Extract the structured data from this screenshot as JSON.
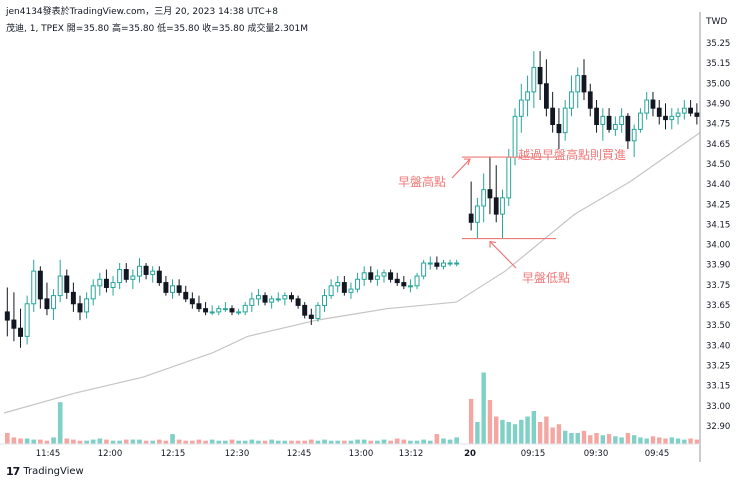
{
  "header": {
    "title": "jen4134發表於TradingView.com，三月 20, 2023 14:38 UTC+8",
    "ohlc_line": "茂迪, 1, TPEX  開=35.80  高=35.80  低=35.80  收=35.80  成交量2.301M"
  },
  "currency": "TWD",
  "brand": {
    "logo": "17",
    "name": "TradingView"
  },
  "colors": {
    "up": "#26a69a",
    "down": "#131722",
    "annotation": "#f07878",
    "ma": "#c8c4c4",
    "vol_up": "#7fd0c6",
    "vol_down": "#f4a6a2"
  },
  "chart_data": {
    "type": "candlestick",
    "y_axis": {
      "ticks": [
        "35.25",
        "35.15",
        "35.00",
        "34.90",
        "34.75",
        "34.65",
        "34.50",
        "34.40",
        "34.25",
        "34.15",
        "34.00",
        "33.90",
        "33.75",
        "33.65",
        "33.50",
        "33.40",
        "33.25",
        "33.15",
        "33.00",
        "32.90"
      ]
    },
    "x_axis": {
      "ticks": [
        {
          "label": "11:45"
        },
        {
          "label": "12:00"
        },
        {
          "label": "12:15"
        },
        {
          "label": "12:30"
        },
        {
          "label": "12:45"
        },
        {
          "label": "13:00"
        },
        {
          "label": "13:12"
        },
        {
          "label": "20",
          "bold": true
        },
        {
          "label": "09:15"
        },
        {
          "label": "09:30"
        },
        {
          "label": "09:45"
        }
      ]
    },
    "annotations": [
      {
        "text": "越過早盤高點則買進"
      },
      {
        "text": "早盤高點"
      },
      {
        "text": "早盤低點"
      }
    ],
    "reference_levels": {
      "early_high": 34.55,
      "early_low": 34.05
    },
    "day1_candles": [
      [
        33.6,
        33.75,
        33.45,
        33.55
      ],
      [
        33.55,
        33.72,
        33.42,
        33.5
      ],
      [
        33.5,
        33.62,
        33.38,
        33.45
      ],
      [
        33.45,
        33.7,
        33.4,
        33.65
      ],
      [
        33.65,
        33.92,
        33.6,
        33.85
      ],
      [
        33.85,
        33.88,
        33.62,
        33.68
      ],
      [
        33.68,
        33.78,
        33.58,
        33.62
      ],
      [
        33.62,
        33.74,
        33.55,
        33.7
      ],
      [
        33.7,
        33.92,
        33.66,
        33.82
      ],
      [
        33.82,
        33.86,
        33.68,
        33.72
      ],
      [
        33.72,
        33.78,
        33.6,
        33.65
      ],
      [
        33.65,
        33.7,
        33.55,
        33.6
      ],
      [
        33.6,
        33.72,
        33.56,
        33.68
      ],
      [
        33.68,
        33.8,
        33.64,
        33.76
      ],
      [
        33.76,
        33.84,
        33.7,
        33.8
      ],
      [
        33.8,
        33.86,
        33.72,
        33.75
      ],
      [
        33.75,
        33.82,
        33.7,
        33.78
      ],
      [
        33.78,
        33.9,
        33.74,
        33.86
      ],
      [
        33.86,
        33.9,
        33.78,
        33.8
      ],
      [
        33.8,
        33.86,
        33.74,
        33.82
      ],
      [
        33.82,
        33.93,
        33.78,
        33.88
      ],
      [
        33.88,
        33.9,
        33.8,
        33.83
      ],
      [
        33.83,
        33.88,
        33.78,
        33.85
      ],
      [
        33.85,
        33.88,
        33.76,
        33.78
      ],
      [
        33.78,
        33.82,
        33.7,
        33.72
      ],
      [
        33.72,
        33.8,
        33.68,
        33.76
      ],
      [
        33.76,
        33.8,
        33.7,
        33.72
      ],
      [
        33.72,
        33.76,
        33.66,
        33.68
      ],
      [
        33.68,
        33.72,
        33.62,
        33.65
      ],
      [
        33.65,
        33.7,
        33.6,
        33.62
      ],
      [
        33.62,
        33.66,
        33.58,
        33.6
      ],
      [
        33.6,
        33.64,
        33.58,
        33.6
      ],
      [
        33.6,
        33.64,
        33.58,
        33.62
      ],
      [
        33.62,
        33.66,
        33.6,
        33.62
      ],
      [
        33.62,
        33.64,
        33.58,
        33.6
      ],
      [
        33.6,
        33.62,
        33.58,
        33.6
      ],
      [
        33.6,
        33.66,
        33.58,
        33.64
      ],
      [
        33.64,
        33.72,
        33.6,
        33.68
      ],
      [
        33.68,
        33.74,
        33.64,
        33.7
      ],
      [
        33.7,
        33.72,
        33.64,
        33.66
      ],
      [
        33.66,
        33.7,
        33.62,
        33.68
      ],
      [
        33.68,
        33.72,
        33.66,
        33.68
      ],
      [
        33.68,
        33.72,
        33.64,
        33.7
      ],
      [
        33.7,
        33.72,
        33.66,
        33.68
      ],
      [
        33.68,
        33.7,
        33.62,
        33.64
      ],
      [
        33.64,
        33.66,
        33.56,
        33.58
      ],
      [
        33.58,
        33.62,
        33.52,
        33.56
      ],
      [
        33.56,
        33.66,
        33.54,
        33.64
      ],
      [
        33.64,
        33.74,
        33.6,
        33.7
      ],
      [
        33.7,
        33.8,
        33.68,
        33.76
      ],
      [
        33.76,
        33.82,
        33.72,
        33.78
      ],
      [
        33.78,
        33.82,
        33.7,
        33.72
      ],
      [
        33.72,
        33.78,
        33.68,
        33.74
      ],
      [
        33.74,
        33.84,
        33.72,
        33.8
      ],
      [
        33.8,
        33.88,
        33.76,
        33.84
      ],
      [
        33.84,
        33.88,
        33.78,
        33.8
      ],
      [
        33.8,
        33.86,
        33.76,
        33.82
      ],
      [
        33.82,
        33.86,
        33.78,
        33.84
      ],
      [
        33.84,
        33.86,
        33.78,
        33.8
      ],
      [
        33.8,
        33.84,
        33.76,
        33.78
      ],
      [
        33.78,
        33.82,
        33.74,
        33.76
      ],
      [
        33.76,
        33.8,
        33.72,
        33.76
      ],
      [
        33.76,
        33.84,
        33.74,
        33.82
      ],
      [
        33.82,
        33.92,
        33.8,
        33.9
      ],
      [
        33.9,
        33.94,
        33.86,
        33.9
      ],
      [
        33.9,
        33.94,
        33.86,
        33.88
      ],
      [
        33.88,
        33.92,
        33.86,
        33.9
      ],
      [
        33.9,
        33.92,
        33.88,
        33.9
      ],
      [
        33.9,
        33.92,
        33.88,
        33.9
      ]
    ],
    "day2_candles": [
      [
        34.2,
        34.4,
        34.1,
        34.15
      ],
      [
        34.15,
        34.3,
        34.05,
        34.25
      ],
      [
        34.25,
        34.45,
        34.15,
        34.35
      ],
      [
        34.35,
        34.55,
        34.2,
        34.3
      ],
      [
        34.3,
        34.5,
        34.15,
        34.2
      ],
      [
        34.2,
        34.35,
        34.05,
        34.3
      ],
      [
        34.3,
        34.6,
        34.25,
        34.55
      ],
      [
        34.55,
        34.85,
        34.5,
        34.8
      ],
      [
        34.8,
        35.0,
        34.7,
        34.9
      ],
      [
        34.9,
        35.05,
        34.8,
        34.95
      ],
      [
        34.95,
        35.2,
        34.85,
        35.1
      ],
      [
        35.1,
        35.2,
        34.9,
        35.0
      ],
      [
        35.0,
        35.15,
        34.8,
        34.85
      ],
      [
        34.85,
        34.95,
        34.7,
        34.75
      ],
      [
        34.75,
        34.85,
        34.6,
        34.7
      ],
      [
        34.7,
        34.9,
        34.65,
        34.85
      ],
      [
        34.85,
        35.05,
        34.8,
        34.95
      ],
      [
        34.95,
        35.1,
        34.85,
        35.05
      ],
      [
        35.05,
        35.15,
        34.9,
        34.95
      ],
      [
        34.95,
        35.0,
        34.8,
        34.85
      ],
      [
        34.85,
        34.9,
        34.7,
        34.75
      ],
      [
        34.75,
        34.85,
        34.65,
        34.8
      ],
      [
        34.8,
        34.85,
        34.7,
        34.72
      ],
      [
        34.72,
        34.8,
        34.68,
        34.75
      ],
      [
        34.75,
        34.85,
        34.7,
        34.8
      ],
      [
        34.8,
        34.82,
        34.6,
        34.65
      ],
      [
        34.65,
        34.75,
        34.55,
        34.72
      ],
      [
        34.72,
        34.85,
        34.7,
        34.82
      ],
      [
        34.82,
        34.95,
        34.78,
        34.9
      ],
      [
        34.9,
        34.95,
        34.8,
        34.85
      ],
      [
        34.85,
        34.9,
        34.75,
        34.8
      ],
      [
        34.8,
        34.88,
        34.72,
        34.78
      ],
      [
        34.78,
        34.85,
        34.72,
        34.8
      ],
      [
        34.8,
        34.85,
        34.75,
        34.82
      ],
      [
        34.82,
        34.9,
        34.78,
        34.85
      ],
      [
        34.85,
        34.9,
        34.8,
        34.82
      ],
      [
        34.82,
        34.88,
        34.75,
        34.8
      ]
    ],
    "moving_average": [
      [
        0,
        32.98
      ],
      [
        0.1,
        33.1
      ],
      [
        0.2,
        33.2
      ],
      [
        0.3,
        33.35
      ],
      [
        0.35,
        33.45
      ],
      [
        0.45,
        33.55
      ],
      [
        0.55,
        33.62
      ],
      [
        0.65,
        33.66
      ],
      [
        0.72,
        33.85
      ],
      [
        0.82,
        34.2
      ],
      [
        0.9,
        34.4
      ],
      [
        1,
        34.7
      ]
    ],
    "day1_volume": [
      0.1,
      0.06,
      0.05,
      0.05,
      0.04,
      0.04,
      0.03,
      0.06,
      0.38,
      0.05,
      0.04,
      0.03,
      0.03,
      0.04,
      0.05,
      0.04,
      0.03,
      0.03,
      0.04,
      0.04,
      0.04,
      0.03,
      0.03,
      0.04,
      0.03,
      0.09,
      0.04,
      0.03,
      0.03,
      0.04,
      0.03,
      0.04,
      0.03,
      0.03,
      0.04,
      0.03,
      0.03,
      0.04,
      0.03,
      0.03,
      0.04,
      0.03,
      0.03,
      0.03,
      0.03,
      0.03,
      0.04,
      0.03,
      0.04,
      0.03,
      0.03,
      0.03,
      0.03,
      0.04,
      0.04,
      0.03,
      0.03,
      0.04,
      0.03,
      0.05,
      0.04,
      0.03,
      0.03,
      0.04,
      0.03,
      0.09,
      0.05,
      0.04,
      0.06
    ],
    "day2_volume": [
      0.41,
      0.2,
      0.65,
      0.4,
      0.25,
      0.22,
      0.2,
      0.18,
      0.22,
      0.25,
      0.3,
      0.2,
      0.25,
      0.15,
      0.18,
      0.12,
      0.1,
      0.1,
      0.12,
      0.08,
      0.1,
      0.08,
      0.09,
      0.07,
      0.06,
      0.1,
      0.08,
      0.06,
      0.05,
      0.07,
      0.06,
      0.05,
      0.06,
      0.05,
      0.04,
      0.05,
      0.04
    ]
  }
}
